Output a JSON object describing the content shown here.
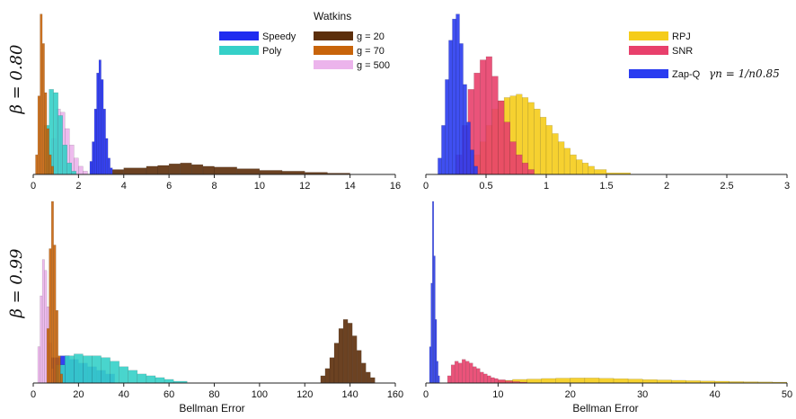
{
  "figure": {
    "row_labels": [
      "β = 0.80",
      "β = 0.99"
    ],
    "xlabel": "Bellman Error",
    "legend_top_left": {
      "title": "Watkins",
      "entries": [
        {
          "label": "Speedy",
          "color": "#1f2cf0"
        },
        {
          "label": "Poly",
          "color": "#35d0c8"
        },
        {
          "label": "g = 20",
          "color": "#5c2e0a"
        },
        {
          "label": "g = 70",
          "color": "#c8640a"
        },
        {
          "label": "g = 500",
          "color": "#ecb4ec"
        }
      ]
    },
    "legend_top_right": {
      "entries": [
        {
          "label": "RPJ",
          "color": "#f5cc1a"
        },
        {
          "label": "SNR",
          "color": "#e8406c"
        },
        {
          "label": "Zap-Q",
          "color": "#2a3cf0",
          "formula": "γn = 1/n0.85"
        }
      ]
    }
  },
  "chart_data": [
    {
      "type": "bar",
      "panel": "top-left",
      "row_label": "β = 0.80",
      "xlim": [
        0,
        16
      ],
      "xticks": [
        0,
        2,
        4,
        6,
        8,
        10,
        12,
        14,
        16
      ],
      "series": [
        {
          "name": "g = 20",
          "color": "#5c2e0a",
          "bins": [
            [
              3.5,
              4.0,
              0.03
            ],
            [
              4.0,
              5.0,
              0.04
            ],
            [
              5.0,
              5.5,
              0.05
            ],
            [
              5.5,
              6.0,
              0.055
            ],
            [
              6.0,
              6.5,
              0.065
            ],
            [
              6.5,
              7.0,
              0.07
            ],
            [
              7.0,
              7.5,
              0.06
            ],
            [
              7.5,
              8.0,
              0.05
            ],
            [
              8.0,
              9.0,
              0.045
            ],
            [
              9.0,
              10.0,
              0.035
            ],
            [
              10.0,
              11.0,
              0.025
            ],
            [
              11.0,
              12.0,
              0.02
            ],
            [
              12.0,
              13.0,
              0.013
            ],
            [
              13.0,
              14.0,
              0.008
            ]
          ]
        },
        {
          "name": "g = 500",
          "color": "#ecb4ec",
          "bins": [
            [
              0.8,
              1.0,
              0.22
            ],
            [
              1.0,
              1.2,
              0.4
            ],
            [
              1.2,
              1.4,
              0.38
            ],
            [
              1.4,
              1.6,
              0.28
            ],
            [
              1.6,
              1.8,
              0.18
            ],
            [
              1.8,
              2.0,
              0.1
            ],
            [
              2.0,
              2.2,
              0.05
            ],
            [
              2.2,
              2.4,
              0.02
            ]
          ]
        },
        {
          "name": "Poly",
          "color": "#35d0c8",
          "bins": [
            [
              0.5,
              0.7,
              0.3
            ],
            [
              0.7,
              0.9,
              0.52
            ],
            [
              0.9,
              1.1,
              0.5
            ],
            [
              1.1,
              1.3,
              0.36
            ],
            [
              1.3,
              1.5,
              0.18
            ],
            [
              1.5,
              1.7,
              0.07
            ],
            [
              1.7,
              1.9,
              0.02
            ]
          ]
        },
        {
          "name": "Speedy",
          "color": "#1f2cf0",
          "bins": [
            [
              2.5,
              2.6,
              0.08
            ],
            [
              2.6,
              2.7,
              0.2
            ],
            [
              2.7,
              2.8,
              0.4
            ],
            [
              2.8,
              2.9,
              0.62
            ],
            [
              2.9,
              3.0,
              0.7
            ],
            [
              3.0,
              3.1,
              0.58
            ],
            [
              3.1,
              3.2,
              0.4
            ],
            [
              3.2,
              3.3,
              0.22
            ],
            [
              3.3,
              3.4,
              0.1
            ],
            [
              3.4,
              3.5,
              0.04
            ]
          ]
        },
        {
          "name": "g = 70",
          "color": "#c8640a",
          "bins": [
            [
              0.1,
              0.2,
              0.12
            ],
            [
              0.2,
              0.3,
              0.48
            ],
            [
              0.3,
              0.4,
              0.98
            ],
            [
              0.4,
              0.5,
              0.8
            ],
            [
              0.5,
              0.6,
              0.5
            ],
            [
              0.6,
              0.7,
              0.28
            ],
            [
              0.7,
              0.8,
              0.12
            ],
            [
              0.8,
              0.9,
              0.05
            ]
          ]
        }
      ]
    },
    {
      "type": "bar",
      "panel": "top-right",
      "xlim": [
        0,
        3
      ],
      "xticks": [
        0,
        0.5,
        1,
        1.5,
        2,
        2.5,
        3
      ],
      "series": [
        {
          "name": "RPJ",
          "color": "#f5cc1a",
          "bins": [
            [
              0.35,
              0.4,
              0.06
            ],
            [
              0.4,
              0.45,
              0.12
            ],
            [
              0.45,
              0.5,
              0.2
            ],
            [
              0.5,
              0.55,
              0.3
            ],
            [
              0.55,
              0.6,
              0.4
            ],
            [
              0.6,
              0.65,
              0.45
            ],
            [
              0.65,
              0.7,
              0.47
            ],
            [
              0.7,
              0.75,
              0.48
            ],
            [
              0.75,
              0.8,
              0.49
            ],
            [
              0.8,
              0.85,
              0.47
            ],
            [
              0.85,
              0.9,
              0.44
            ],
            [
              0.9,
              0.95,
              0.4
            ],
            [
              0.95,
              1.0,
              0.35
            ],
            [
              1.0,
              1.05,
              0.3
            ],
            [
              1.05,
              1.1,
              0.25
            ],
            [
              1.1,
              1.15,
              0.2
            ],
            [
              1.15,
              1.2,
              0.16
            ],
            [
              1.2,
              1.25,
              0.12
            ],
            [
              1.25,
              1.3,
              0.09
            ],
            [
              1.3,
              1.35,
              0.07
            ],
            [
              1.35,
              1.4,
              0.05
            ],
            [
              1.4,
              1.5,
              0.03
            ],
            [
              1.5,
              1.7,
              0.01
            ]
          ]
        },
        {
          "name": "SNR",
          "color": "#e8406c",
          "bins": [
            [
              0.25,
              0.3,
              0.12
            ],
            [
              0.3,
              0.35,
              0.3
            ],
            [
              0.35,
              0.4,
              0.52
            ],
            [
              0.4,
              0.45,
              0.62
            ],
            [
              0.45,
              0.5,
              0.7
            ],
            [
              0.5,
              0.55,
              0.72
            ],
            [
              0.55,
              0.6,
              0.6
            ],
            [
              0.6,
              0.65,
              0.45
            ],
            [
              0.65,
              0.7,
              0.32
            ],
            [
              0.7,
              0.75,
              0.2
            ],
            [
              0.75,
              0.8,
              0.12
            ],
            [
              0.8,
              0.85,
              0.07
            ],
            [
              0.85,
              0.9,
              0.03
            ]
          ]
        },
        {
          "name": "Zap-Q",
          "color": "#2a3cf0",
          "bins": [
            [
              0.1,
              0.13,
              0.1
            ],
            [
              0.13,
              0.16,
              0.3
            ],
            [
              0.16,
              0.19,
              0.58
            ],
            [
              0.19,
              0.22,
              0.82
            ],
            [
              0.22,
              0.25,
              0.95
            ],
            [
              0.25,
              0.28,
              0.98
            ],
            [
              0.28,
              0.31,
              0.8
            ],
            [
              0.31,
              0.34,
              0.55
            ],
            [
              0.34,
              0.37,
              0.32
            ],
            [
              0.37,
              0.4,
              0.15
            ],
            [
              0.4,
              0.43,
              0.05
            ]
          ]
        }
      ]
    },
    {
      "type": "bar",
      "panel": "bottom-left",
      "row_label": "β = 0.99",
      "xlabel": "Bellman Error",
      "xlim": [
        0,
        160
      ],
      "xticks": [
        0,
        20,
        40,
        60,
        80,
        100,
        120,
        140,
        160
      ],
      "series": [
        {
          "name": "Speedy",
          "color": "#1f2cf0",
          "bins": [
            [
              8,
              12,
              0.14
            ],
            [
              12,
              16,
              0.15
            ],
            [
              16,
              20,
              0.13
            ],
            [
              20,
              24,
              0.11
            ],
            [
              24,
              28,
              0.09
            ],
            [
              28,
              32,
              0.07
            ],
            [
              32,
              36,
              0.05
            ]
          ]
        },
        {
          "name": "Poly",
          "color": "#35d0c8",
          "bins": [
            [
              10,
              14,
              0.1
            ],
            [
              14,
              18,
              0.15
            ],
            [
              18,
              22,
              0.16
            ],
            [
              22,
              26,
              0.15
            ],
            [
              26,
              30,
              0.15
            ],
            [
              30,
              34,
              0.14
            ],
            [
              34,
              38,
              0.12
            ],
            [
              38,
              42,
              0.09
            ],
            [
              42,
              46,
              0.07
            ],
            [
              46,
              50,
              0.05
            ],
            [
              50,
              54,
              0.04
            ],
            [
              54,
              58,
              0.03
            ],
            [
              58,
              62,
              0.02
            ],
            [
              62,
              68,
              0.01
            ]
          ]
        },
        {
          "name": "g = 20",
          "color": "#5c2e0a",
          "bins": [
            [
              127,
              129,
              0.04
            ],
            [
              129,
              131,
              0.08
            ],
            [
              131,
              133,
              0.14
            ],
            [
              133,
              135,
              0.22
            ],
            [
              135,
              137,
              0.3
            ],
            [
              137,
              139,
              0.35
            ],
            [
              139,
              141,
              0.33
            ],
            [
              141,
              143,
              0.26
            ],
            [
              143,
              145,
              0.18
            ],
            [
              145,
              147,
              0.11
            ],
            [
              147,
              149,
              0.06
            ],
            [
              149,
              151,
              0.03
            ]
          ]
        },
        {
          "name": "g = 500",
          "color": "#ecb4ec",
          "bins": [
            [
              2,
              3,
              0.2
            ],
            [
              3,
              4,
              0.48
            ],
            [
              4,
              5,
              0.68
            ],
            [
              5,
              6,
              0.62
            ],
            [
              6,
              7,
              0.42
            ],
            [
              7,
              8,
              0.22
            ],
            [
              8,
              9,
              0.08
            ]
          ]
        },
        {
          "name": "g = 70",
          "color": "#c8640a",
          "bins": [
            [
              6,
              7,
              0.3
            ],
            [
              7,
              8,
              0.74
            ],
            [
              8,
              9,
              1.0
            ],
            [
              9,
              10,
              0.76
            ],
            [
              10,
              11,
              0.4
            ],
            [
              11,
              12,
              0.15
            ],
            [
              12,
              13,
              0.05
            ]
          ]
        }
      ]
    },
    {
      "type": "bar",
      "panel": "bottom-right",
      "xlabel": "Bellman Error",
      "xlim": [
        0,
        50
      ],
      "xticks": [
        0,
        10,
        20,
        30,
        40,
        50
      ],
      "series": [
        {
          "name": "RPJ",
          "color": "#f5cc1a",
          "bins": [
            [
              10,
              12,
              0.015
            ],
            [
              12,
              14,
              0.02
            ],
            [
              14,
              16,
              0.022
            ],
            [
              16,
              18,
              0.025
            ],
            [
              18,
              20,
              0.027
            ],
            [
              20,
              22,
              0.028
            ],
            [
              22,
              24,
              0.028
            ],
            [
              24,
              26,
              0.026
            ],
            [
              26,
              28,
              0.024
            ],
            [
              28,
              30,
              0.022
            ],
            [
              30,
              32,
              0.019
            ],
            [
              32,
              34,
              0.017
            ],
            [
              34,
              36,
              0.015
            ],
            [
              36,
              38,
              0.013
            ],
            [
              38,
              40,
              0.011
            ],
            [
              40,
              42,
              0.01
            ],
            [
              42,
              44,
              0.008
            ],
            [
              44,
              46,
              0.007
            ],
            [
              46,
              48,
              0.006
            ],
            [
              48,
              50,
              0.005
            ]
          ]
        },
        {
          "name": "SNR",
          "color": "#e8406c",
          "bins": [
            [
              3,
              3.5,
              0.04
            ],
            [
              3.5,
              4,
              0.1
            ],
            [
              4,
              4.5,
              0.12
            ],
            [
              4.5,
              5,
              0.11
            ],
            [
              5,
              5.5,
              0.13
            ],
            [
              5.5,
              6,
              0.12
            ],
            [
              6,
              6.5,
              0.11
            ],
            [
              6.5,
              7,
              0.09
            ],
            [
              7,
              7.5,
              0.08
            ],
            [
              7.5,
              8,
              0.06
            ],
            [
              8,
              8.5,
              0.05
            ],
            [
              8.5,
              9,
              0.04
            ],
            [
              9,
              9.5,
              0.03
            ],
            [
              9.5,
              10,
              0.025
            ],
            [
              10,
              11,
              0.018
            ],
            [
              11,
              12,
              0.012
            ],
            [
              12,
              13,
              0.008
            ],
            [
              13,
              14,
              0.005
            ]
          ]
        },
        {
          "name": "Zap-Q",
          "color": "#2a3cf0",
          "bins": [
            [
              0.5,
              0.7,
              0.2
            ],
            [
              0.7,
              0.9,
              0.55
            ],
            [
              0.9,
              1.1,
              1.0
            ],
            [
              1.1,
              1.3,
              0.7
            ],
            [
              1.3,
              1.5,
              0.35
            ],
            [
              1.5,
              1.7,
              0.12
            ],
            [
              1.7,
              1.9,
              0.04
            ]
          ]
        }
      ]
    }
  ]
}
